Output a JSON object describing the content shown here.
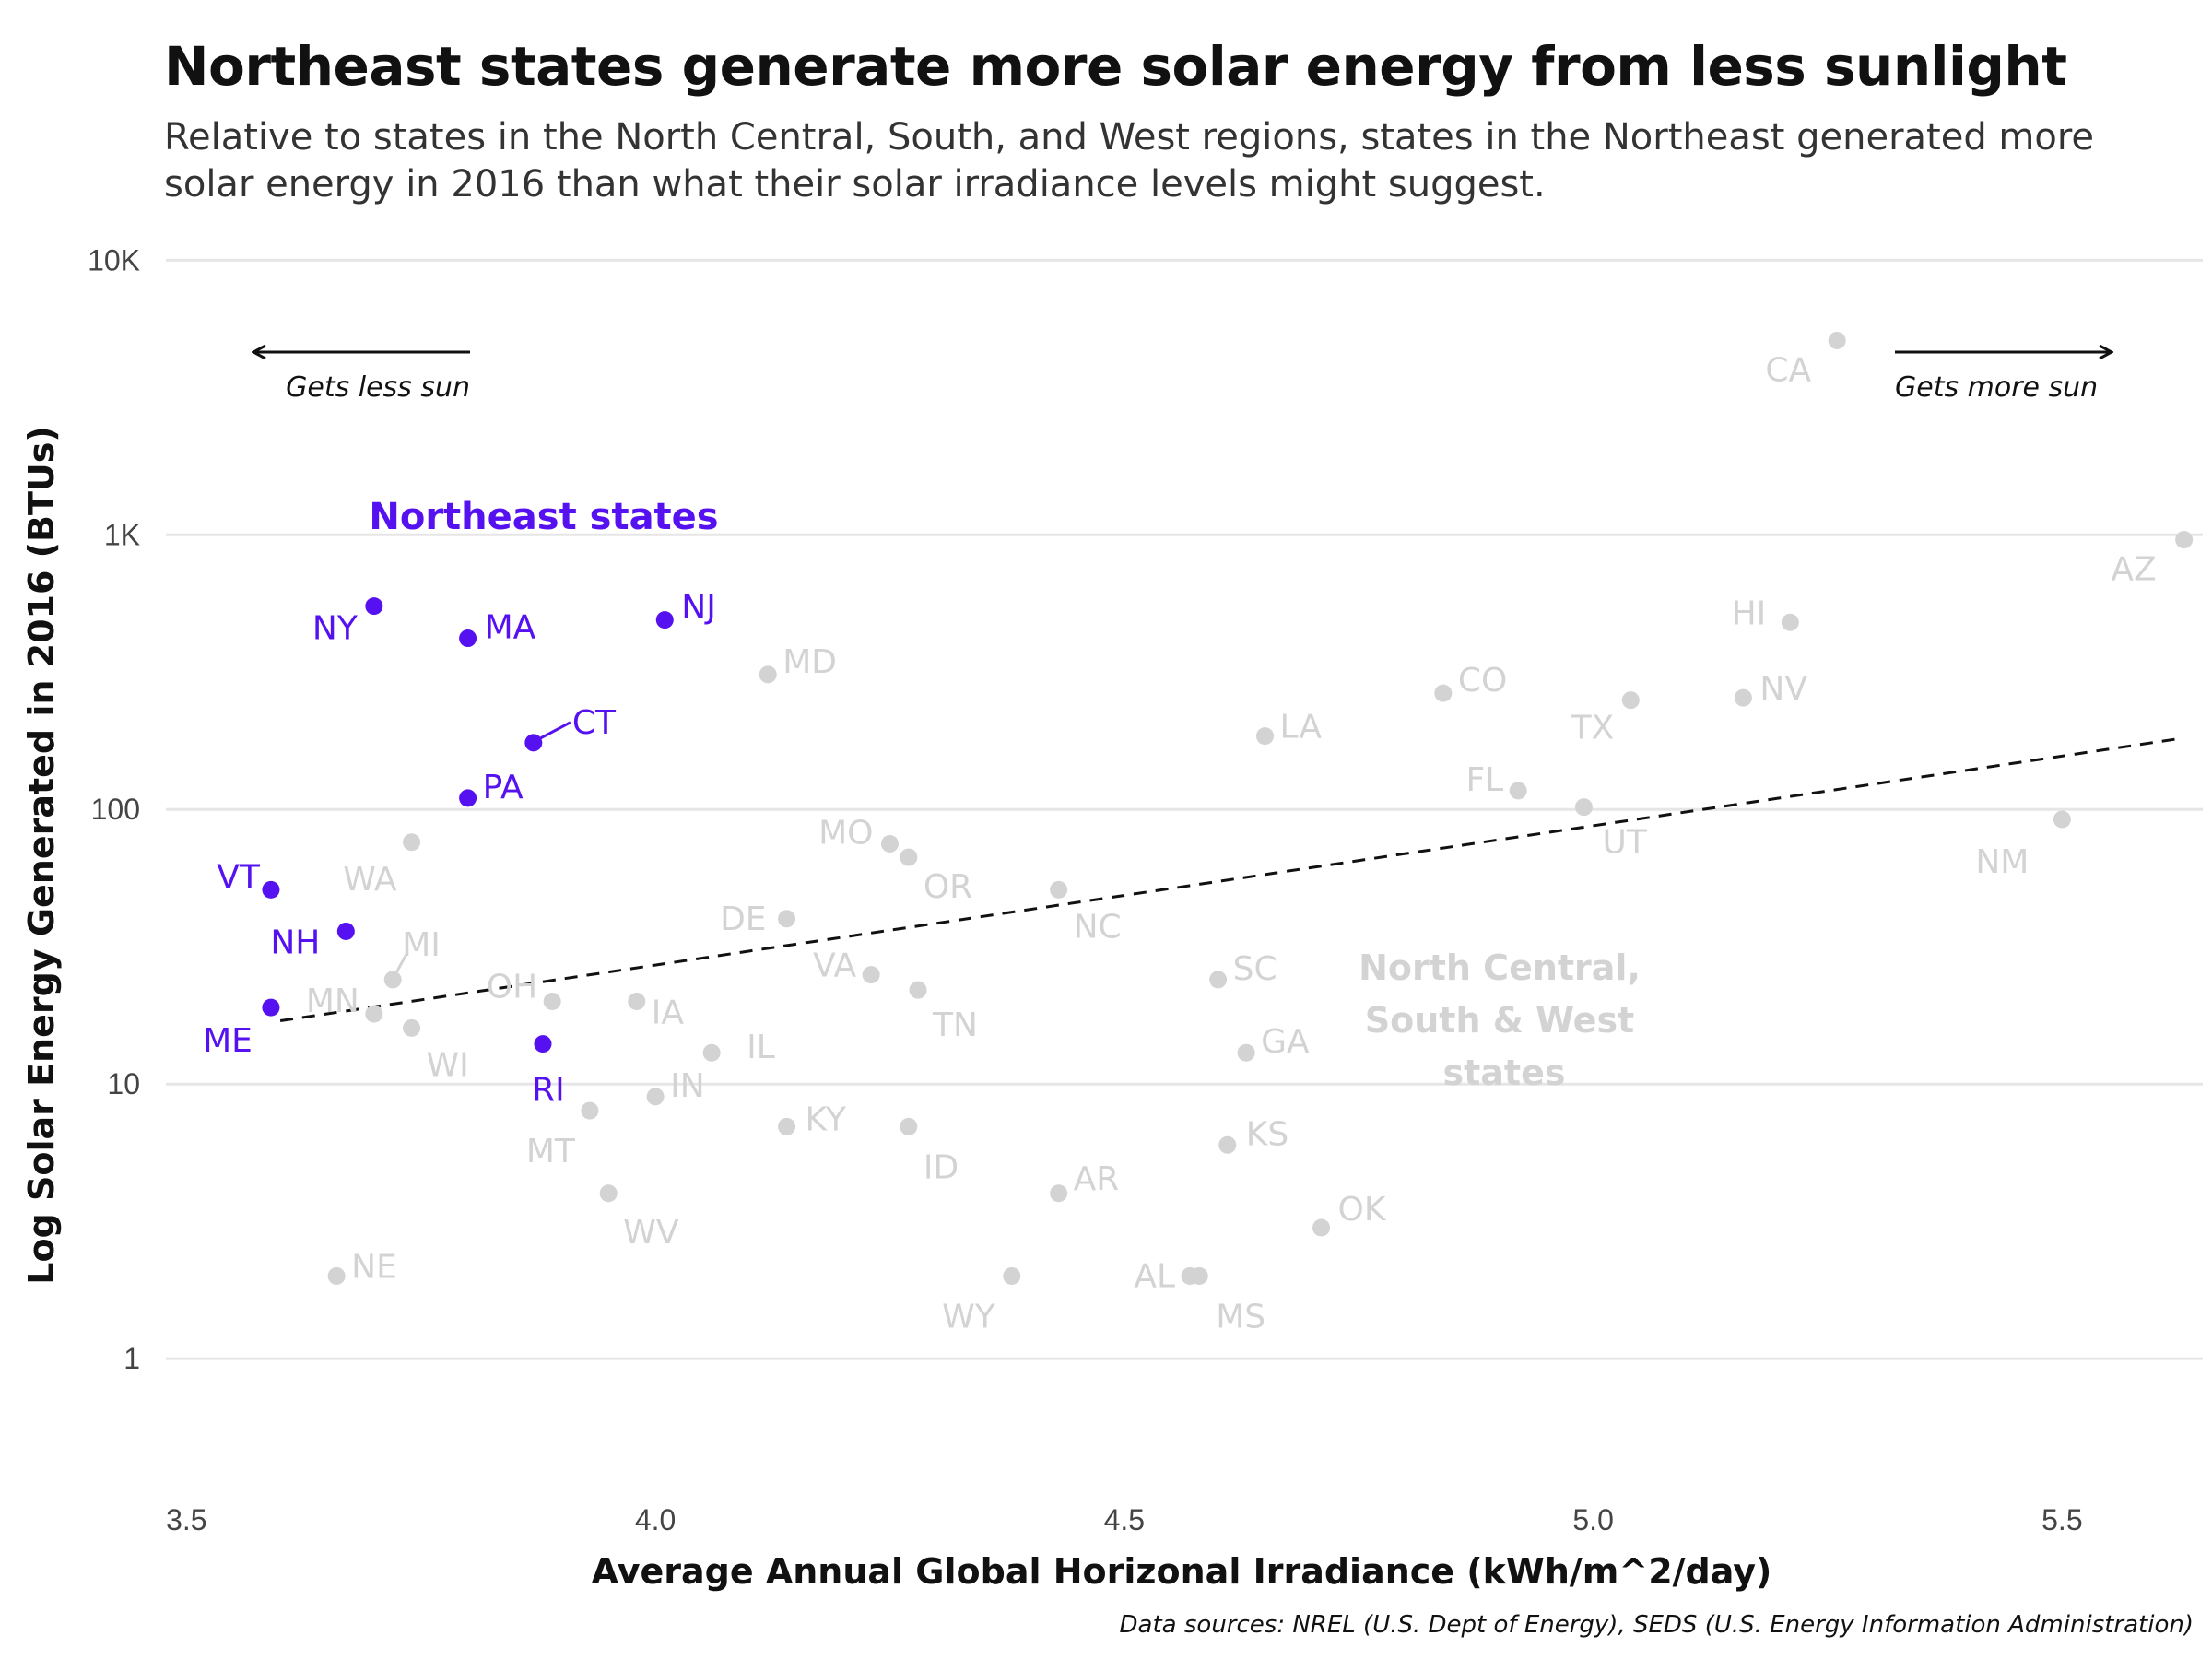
{
  "title": "Northeast states generate more solar energy from less sunlight",
  "subtitle": "Relative to states in the North Central, South, and West regions, states in the Northeast generated more solar energy in 2016 than what their solar irradiance levels might suggest.",
  "caption": "Data sources: NREL (U.S. Dept of Energy), SEDS (U.S. Energy Information Administration)",
  "annotations": {
    "less_sun": "Gets less sun",
    "more_sun": "Gets more sun",
    "northeast_group": "Northeast states",
    "other_group": [
      "North Central,",
      "South & West",
      "states"
    ]
  },
  "colors": {
    "northeast": "#5611F0",
    "other": "#D3D3D3",
    "trend": "#111111",
    "grid": "#E6E6E6"
  },
  "chart_data": {
    "type": "scatter",
    "title": "Northeast states generate more solar energy from less sunlight",
    "xlabel": "Average Annual Global Horizonal Irradiance (kWh/m^2/day)",
    "ylabel": "Log Solar Energy Generated in 2016 (BTUs)",
    "y_scale": "log10",
    "xlim": [
      3.48,
      5.65
    ],
    "ylim": [
      0.35,
      11000
    ],
    "x_ticks": [
      3.5,
      4.0,
      4.5,
      5.0,
      5.5
    ],
    "x_tick_labels": [
      "3.5",
      "4.0",
      "4.5",
      "5.0",
      "5.5"
    ],
    "y_ticks": [
      1,
      10,
      100,
      1000,
      10000
    ],
    "y_tick_labels": [
      "1",
      "10",
      "100",
      "1K",
      "10K"
    ],
    "grid": "horizontal",
    "trend_line": {
      "x": [
        3.6,
        5.62
      ],
      "y": [
        17,
        180
      ]
    },
    "series": [
      {
        "group": "northeast",
        "points": [
          {
            "label": "NY",
            "x": 3.7,
            "y": 550
          },
          {
            "label": "MA",
            "x": 3.8,
            "y": 420
          },
          {
            "label": "NJ",
            "x": 4.01,
            "y": 490
          },
          {
            "label": "CT",
            "x": 3.87,
            "y": 175
          },
          {
            "label": "PA",
            "x": 3.8,
            "y": 110
          },
          {
            "label": "VT",
            "x": 3.59,
            "y": 51
          },
          {
            "label": "NH",
            "x": 3.67,
            "y": 36
          },
          {
            "label": "ME",
            "x": 3.59,
            "y": 19
          },
          {
            "label": "RI",
            "x": 3.88,
            "y": 14
          }
        ]
      },
      {
        "group": "other",
        "points": [
          {
            "label": "CA",
            "x": 5.26,
            "y": 5100
          },
          {
            "label": "AZ",
            "x": 5.63,
            "y": 960
          },
          {
            "label": "HI",
            "x": 5.21,
            "y": 480
          },
          {
            "label": "MD",
            "x": 4.12,
            "y": 310
          },
          {
            "label": "CO",
            "x": 4.84,
            "y": 265
          },
          {
            "label": "NV",
            "x": 5.16,
            "y": 255
          },
          {
            "label": "TX",
            "x": 5.04,
            "y": 250
          },
          {
            "label": "LA",
            "x": 4.65,
            "y": 185
          },
          {
            "label": "FL",
            "x": 4.92,
            "y": 117
          },
          {
            "label": "UT",
            "x": 4.99,
            "y": 102
          },
          {
            "label": "NM",
            "x": 5.5,
            "y": 92
          },
          {
            "label": "WA",
            "x": 3.74,
            "y": 76
          },
          {
            "label": "MO",
            "x": 4.25,
            "y": 75
          },
          {
            "label": "OR",
            "x": 4.27,
            "y": 67
          },
          {
            "label": "NC",
            "x": 4.43,
            "y": 51
          },
          {
            "label": "DE",
            "x": 4.14,
            "y": 40
          },
          {
            "label": "VA",
            "x": 4.23,
            "y": 25
          },
          {
            "label": "MI",
            "x": 3.72,
            "y": 24
          },
          {
            "label": "SC",
            "x": 4.6,
            "y": 24
          },
          {
            "label": "TN",
            "x": 4.28,
            "y": 22
          },
          {
            "label": "OH",
            "x": 3.89,
            "y": 20
          },
          {
            "label": "IA",
            "x": 3.98,
            "y": 20
          },
          {
            "label": "MN",
            "x": 3.7,
            "y": 18
          },
          {
            "label": "WI",
            "x": 3.74,
            "y": 16
          },
          {
            "label": "IL",
            "x": 4.06,
            "y": 13
          },
          {
            "label": "GA",
            "x": 4.63,
            "y": 13
          },
          {
            "label": "IN",
            "x": 4.0,
            "y": 9
          },
          {
            "label": "MT",
            "x": 3.93,
            "y": 8
          },
          {
            "label": "KY",
            "x": 4.14,
            "y": 7
          },
          {
            "label": "ID",
            "x": 4.27,
            "y": 7
          },
          {
            "label": "KS",
            "x": 4.61,
            "y": 6
          },
          {
            "label": "AR",
            "x": 4.43,
            "y": 4
          },
          {
            "label": "WV",
            "x": 3.95,
            "y": 4
          },
          {
            "label": "OK",
            "x": 4.71,
            "y": 3
          },
          {
            "label": "NE",
            "x": 3.66,
            "y": 2
          },
          {
            "label": "WY",
            "x": 4.38,
            "y": 2
          },
          {
            "label": "AL",
            "x": 4.57,
            "y": 2
          },
          {
            "label": "MS",
            "x": 4.58,
            "y": 2
          }
        ]
      }
    ]
  }
}
